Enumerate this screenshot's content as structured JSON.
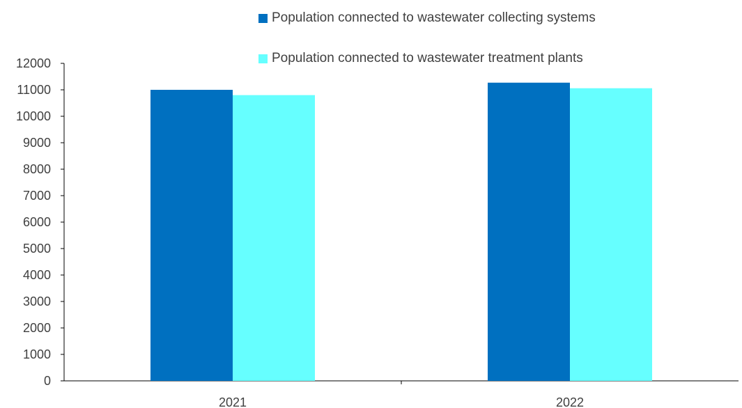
{
  "chart_data": {
    "type": "bar",
    "title": "",
    "xlabel": "",
    "ylabel": "",
    "categories": [
      "2021",
      "2022"
    ],
    "series": [
      {
        "name": "Population connected to wastewater collecting systems",
        "color": "#0070C0",
        "values": [
          11000,
          11270
        ]
      },
      {
        "name": "Population connected to wastewater treatment plants",
        "color": "#66FFFF",
        "values": [
          10800,
          11060
        ]
      }
    ],
    "ylim": [
      0,
      12000
    ],
    "yticks": [
      "0",
      "1000",
      "2000",
      "3000",
      "4000",
      "5000",
      "6000",
      "7000",
      "8000",
      "9000",
      "10000",
      "11000",
      "12000"
    ],
    "grid": false,
    "legend_position": "top"
  }
}
